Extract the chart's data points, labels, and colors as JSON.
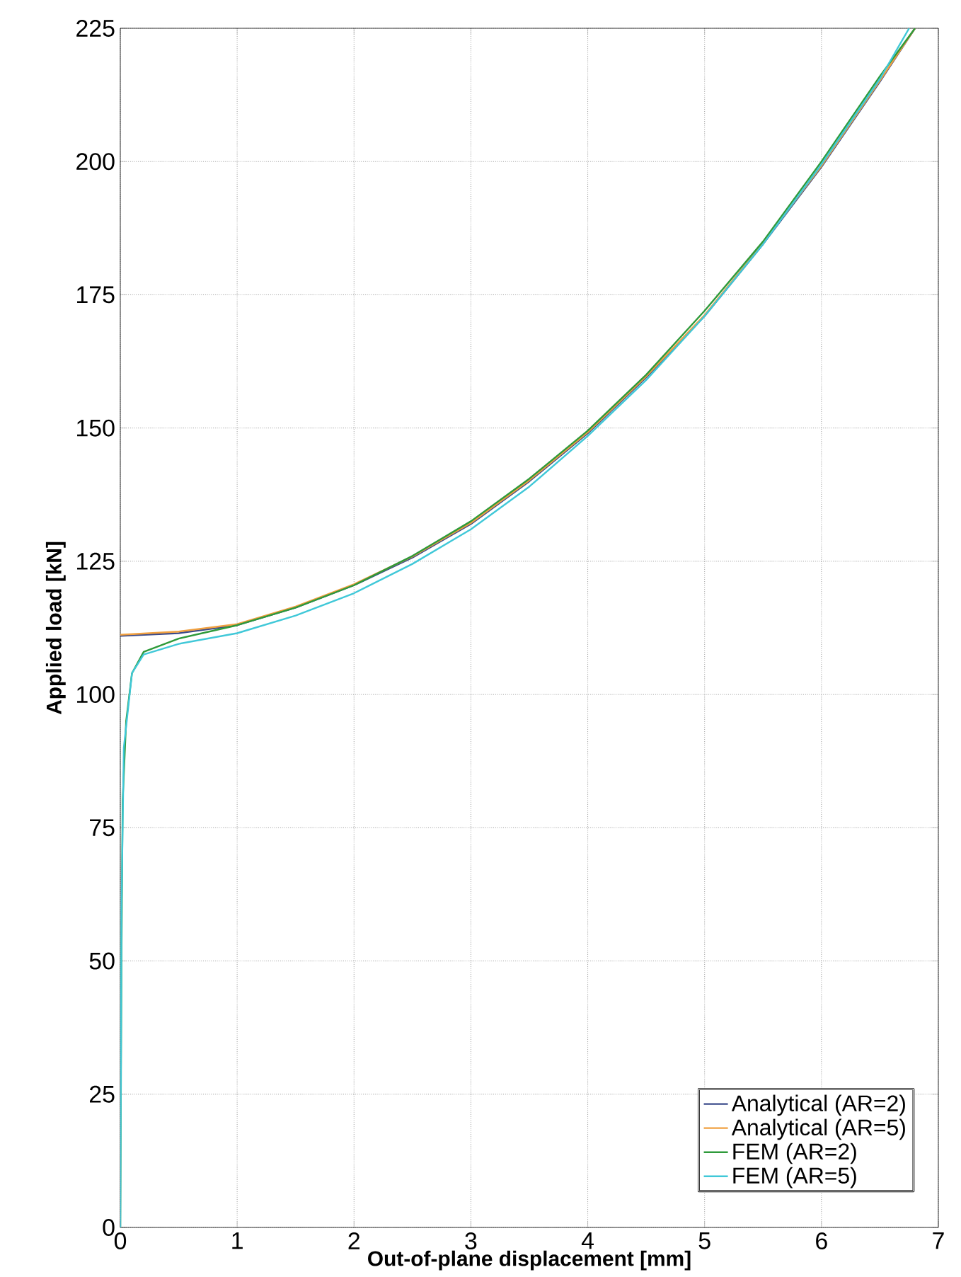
{
  "chart_data": {
    "type": "line",
    "xlabel": "Out-of-plane displacement [mm]",
    "ylabel": "Applied load [kN]",
    "xlim": [
      0,
      7
    ],
    "ylim": [
      0,
      225
    ],
    "xticks": [
      0,
      1,
      2,
      3,
      4,
      5,
      6,
      7
    ],
    "yticks": [
      0,
      25,
      50,
      75,
      100,
      125,
      150,
      175,
      200,
      225
    ],
    "grid": true,
    "legend": "bottom right",
    "line_style": "solid",
    "marker": "none",
    "series": [
      {
        "name": "Analytical (AR=2)",
        "color": "#3a4a8a",
        "x": [
          0,
          0.5,
          1,
          1.5,
          2,
          2.5,
          3,
          3.5,
          4,
          4.5,
          5,
          5.5,
          6,
          6.5,
          6.8
        ],
        "values": [
          111,
          111.5,
          113,
          116.3,
          120.5,
          125.7,
          132,
          140,
          149,
          159.5,
          171,
          184.5,
          199,
          215,
          225
        ]
      },
      {
        "name": "Analytical (AR=5)",
        "color": "#f0a040",
        "x": [
          0,
          0.5,
          1,
          1.5,
          2,
          2.5,
          3,
          3.5,
          4,
          4.5,
          5,
          5.5,
          6,
          6.5,
          6.8
        ],
        "values": [
          111.2,
          111.8,
          113.2,
          116.5,
          120.7,
          125.9,
          132.2,
          140.2,
          149.2,
          159.7,
          171.2,
          184.7,
          199.2,
          215.2,
          225
        ]
      },
      {
        "name": "FEM (AR=2)",
        "color": "#2e9a3a",
        "x": [
          0,
          0.01,
          0.02,
          0.05,
          0.1,
          0.2,
          0.5,
          1,
          1.5,
          2,
          2.5,
          3,
          3.5,
          4,
          4.5,
          5,
          5.5,
          6,
          6.5,
          6.8
        ],
        "values": [
          0,
          50,
          80,
          95,
          104,
          108,
          110.5,
          113,
          116.3,
          120.5,
          126,
          132.5,
          140.5,
          149.5,
          160,
          172,
          185,
          200,
          216,
          225
        ]
      },
      {
        "name": "FEM (AR=5)",
        "color": "#40c8d8",
        "x": [
          0,
          0.01,
          0.03,
          0.1,
          0.2,
          0.5,
          1,
          1.5,
          2,
          2.5,
          3,
          3.5,
          4,
          4.5,
          5,
          5.5,
          6,
          6.5,
          6.75
        ],
        "values": [
          0,
          60,
          90,
          104,
          107.5,
          109.5,
          111.5,
          114.8,
          119,
          124.5,
          131,
          139,
          148.5,
          159,
          171,
          184.5,
          199.5,
          215.5,
          225
        ]
      }
    ]
  }
}
